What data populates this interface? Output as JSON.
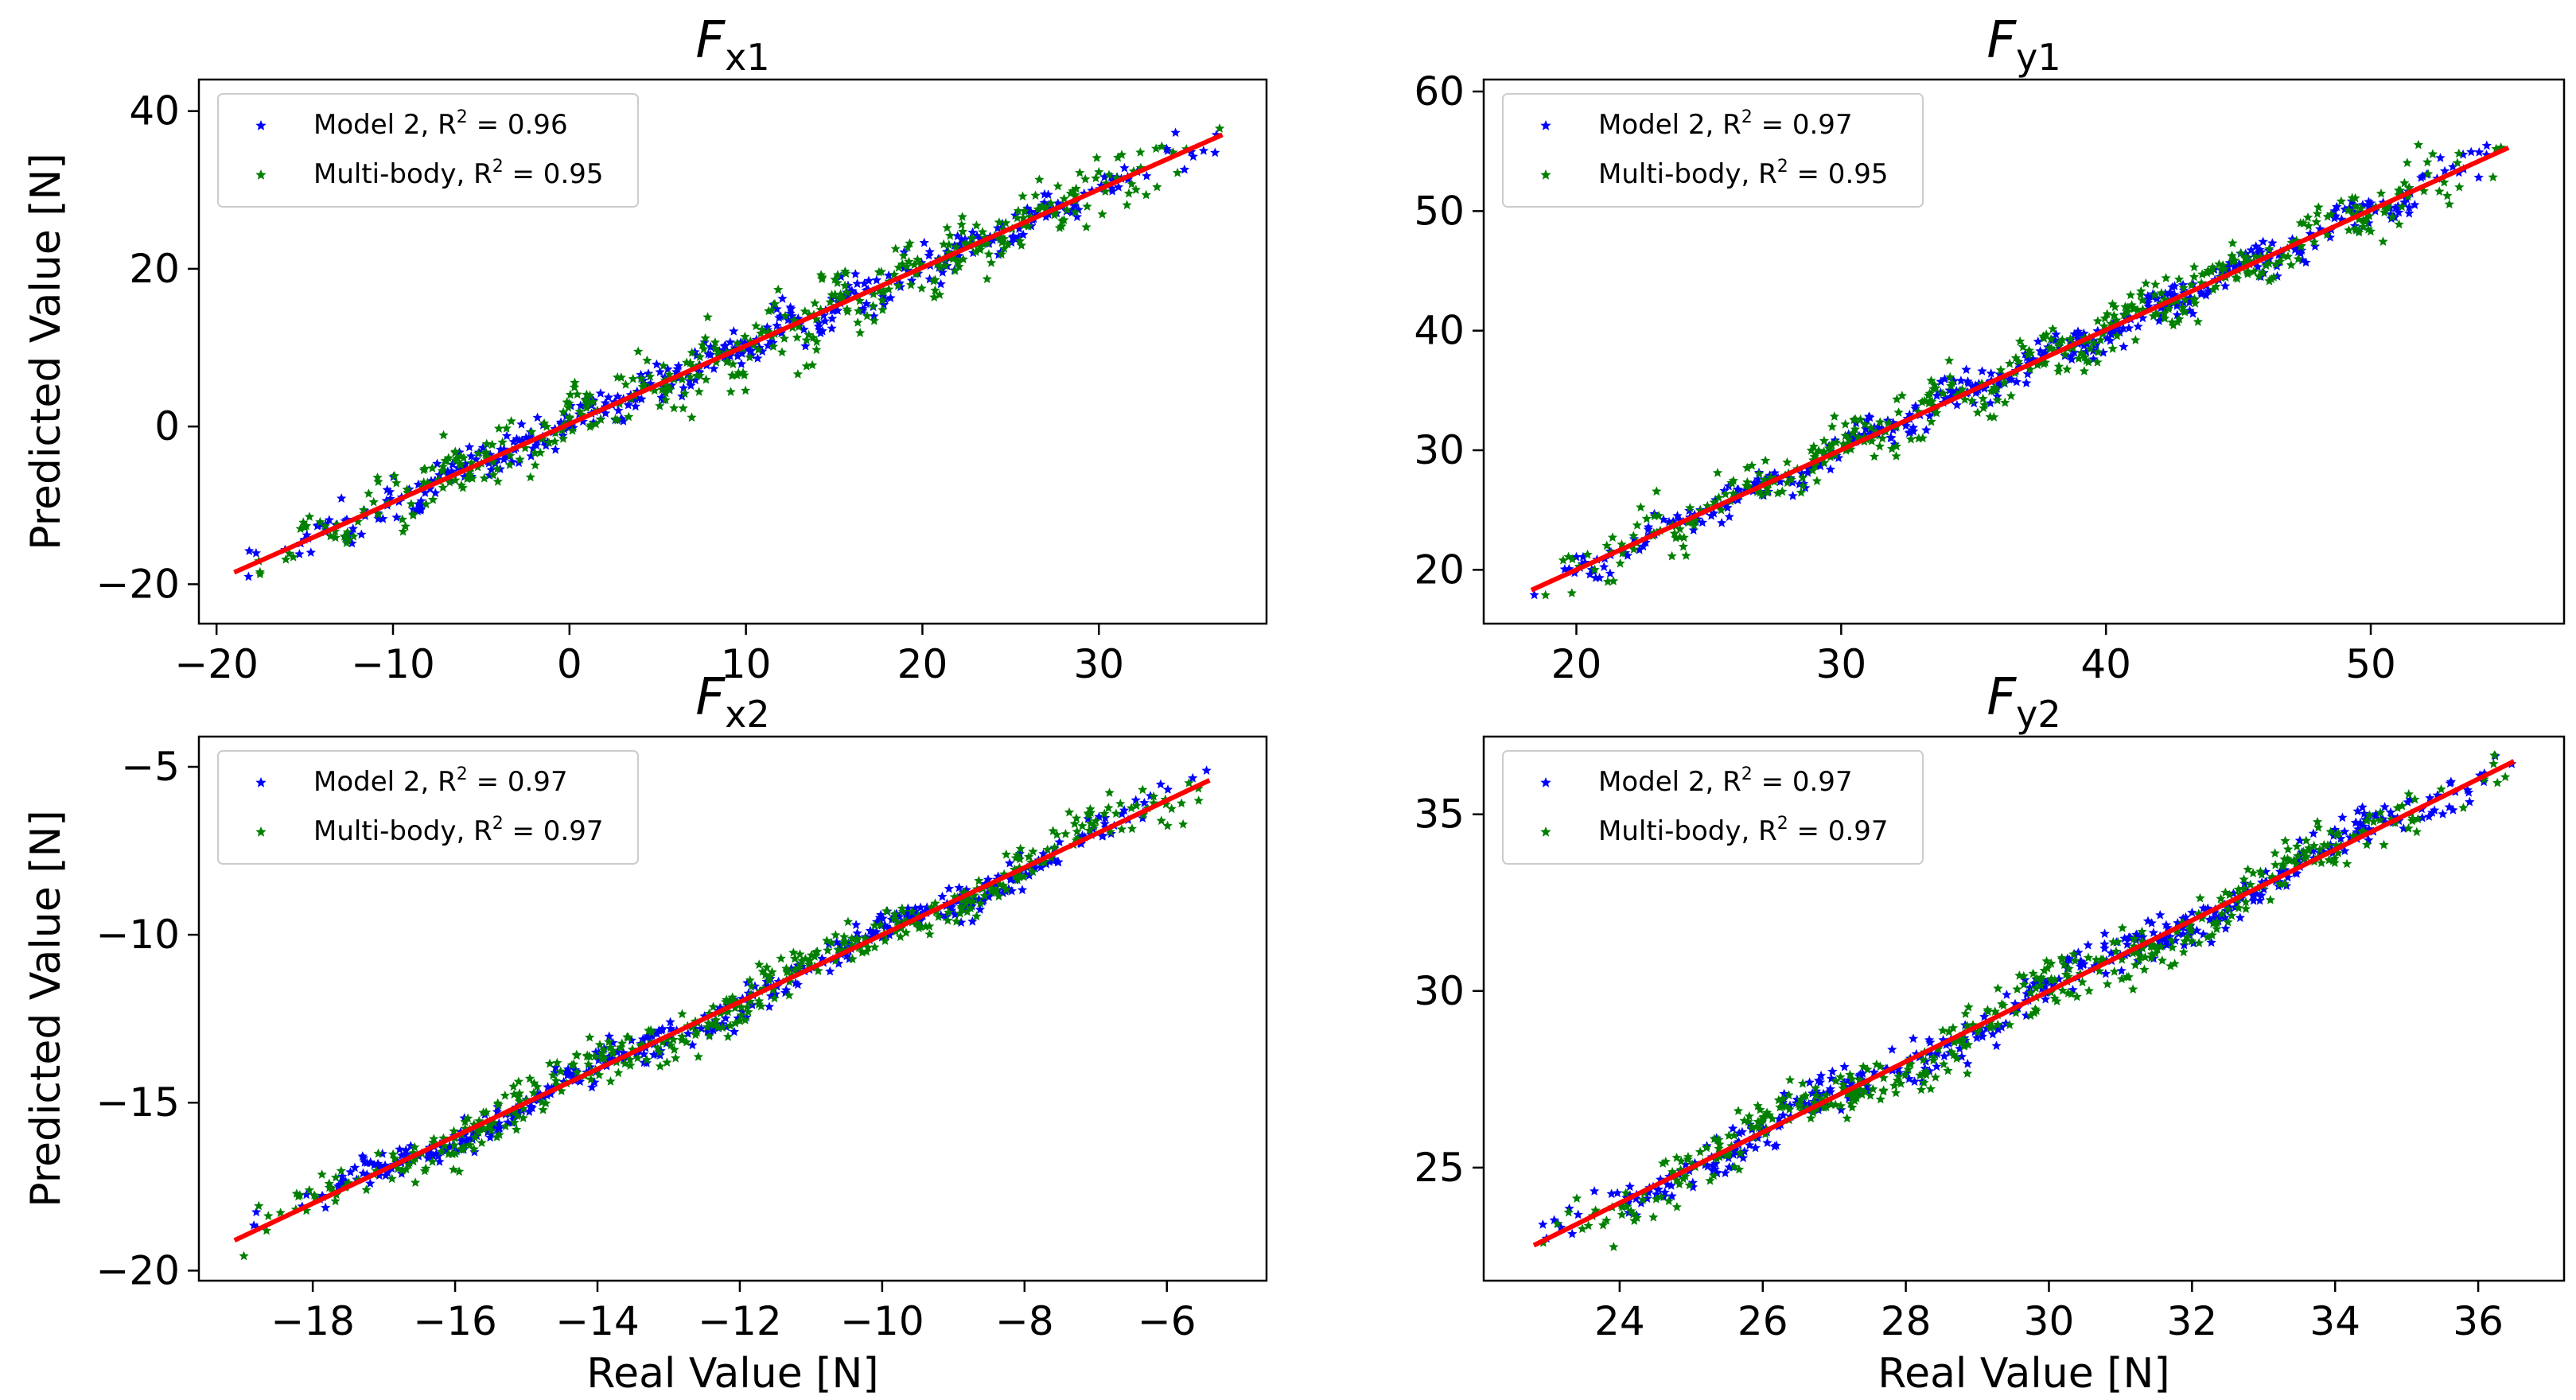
{
  "chart_data": [
    {
      "type": "scatter",
      "title": "F",
      "title_sub": "x1",
      "xlabel": "",
      "ylabel": "Predicted Value [N]",
      "xlim": [
        -21,
        39.5
      ],
      "ylim": [
        -25,
        44
      ],
      "xticks": [
        -20,
        -10,
        0,
        10,
        20,
        30
      ],
      "xtick_labels": [
        "−20",
        "−10",
        "0",
        "10",
        "20",
        "30"
      ],
      "yticks": [
        -20,
        0,
        20,
        40
      ],
      "ytick_labels": [
        "−20",
        "0",
        "20",
        "40"
      ],
      "fit_line": {
        "x": [
          -19,
          37
        ],
        "y": [
          -18.5,
          37
        ]
      },
      "series": [
        {
          "name": "Model 2",
          "r2_label": "R",
          "r2_value": " = 0.96",
          "color": "#0000ff",
          "seed": 11,
          "noise": 2.2,
          "n": 420
        },
        {
          "name": "Multi-body",
          "r2_label": "R",
          "r2_value": " = 0.95",
          "color": "#008000",
          "seed": 23,
          "noise": 3.2,
          "n": 420
        }
      ],
      "legend_position": "upper-left"
    },
    {
      "type": "scatter",
      "title": "F",
      "title_sub": "y1",
      "xlabel": "",
      "ylabel": "",
      "xlim": [
        16.5,
        57.3
      ],
      "ylim": [
        15.5,
        61
      ],
      "xticks": [
        20,
        30,
        40,
        50
      ],
      "xtick_labels": [
        "20",
        "30",
        "40",
        "50"
      ],
      "yticks": [
        20,
        30,
        40,
        50,
        60
      ],
      "ytick_labels": [
        "20",
        "30",
        "40",
        "50",
        "60"
      ],
      "fit_line": {
        "x": [
          18.3,
          55.2
        ],
        "y": [
          18.3,
          55.3
        ]
      },
      "series": [
        {
          "name": "Model 2",
          "r2_label": "R",
          "r2_value": " = 0.97",
          "color": "#0000ff",
          "seed": 37,
          "noise": 1.3,
          "n": 420
        },
        {
          "name": "Multi-body",
          "r2_label": "R",
          "r2_value": " = 0.95",
          "color": "#008000",
          "seed": 41,
          "noise": 2.0,
          "n": 420
        }
      ],
      "legend_position": "upper-left"
    },
    {
      "type": "scatter",
      "title": "F",
      "title_sub": "x2",
      "xlabel": "Real Value [N]",
      "ylabel": "Predicted Value [N]",
      "xlim": [
        -19.6,
        -4.6
      ],
      "ylim": [
        -20.3,
        -4.1
      ],
      "xticks": [
        -18,
        -16,
        -14,
        -12,
        -10,
        -8,
        -6
      ],
      "xtick_labels": [
        "−18",
        "−16",
        "−14",
        "−12",
        "−10",
        "−8",
        "−6"
      ],
      "yticks": [
        -20,
        -15,
        -10,
        -5
      ],
      "ytick_labels": [
        "−20",
        "−15",
        "−10",
        "−5"
      ],
      "fit_line": {
        "x": [
          -19.1,
          -5.4
        ],
        "y": [
          -19.1,
          -5.4
        ]
      },
      "series": [
        {
          "name": "Model 2",
          "r2_label": "R",
          "r2_value": " = 0.97",
          "color": "#0000ff",
          "seed": 53,
          "noise": 0.45,
          "n": 420
        },
        {
          "name": "Multi-body",
          "r2_label": "R",
          "r2_value": " = 0.97",
          "color": "#008000",
          "seed": 67,
          "noise": 0.55,
          "n": 420
        }
      ],
      "legend_position": "upper-left"
    },
    {
      "type": "scatter",
      "title": "F",
      "title_sub": "y2",
      "xlabel": "Real Value [N]",
      "ylabel": "",
      "xlim": [
        22.1,
        37.2
      ],
      "ylim": [
        21.8,
        37.2
      ],
      "xticks": [
        24,
        26,
        28,
        30,
        32,
        34,
        36
      ],
      "xtick_labels": [
        "24",
        "26",
        "28",
        "30",
        "32",
        "34",
        "36"
      ],
      "yticks": [
        25,
        30,
        35
      ],
      "ytick_labels": [
        "25",
        "30",
        "35"
      ],
      "fit_line": {
        "x": [
          22.8,
          36.5
        ],
        "y": [
          22.8,
          36.5
        ]
      },
      "series": [
        {
          "name": "Model 2",
          "r2_label": "R",
          "r2_value": " = 0.97",
          "color": "#0000ff",
          "seed": 71,
          "noise": 0.5,
          "n": 420
        },
        {
          "name": "Multi-body",
          "r2_label": "R",
          "r2_value": " = 0.97",
          "color": "#008000",
          "seed": 83,
          "noise": 0.65,
          "n": 420
        }
      ],
      "legend_position": "upper-left"
    }
  ],
  "fit_line_color": "#ff0000"
}
